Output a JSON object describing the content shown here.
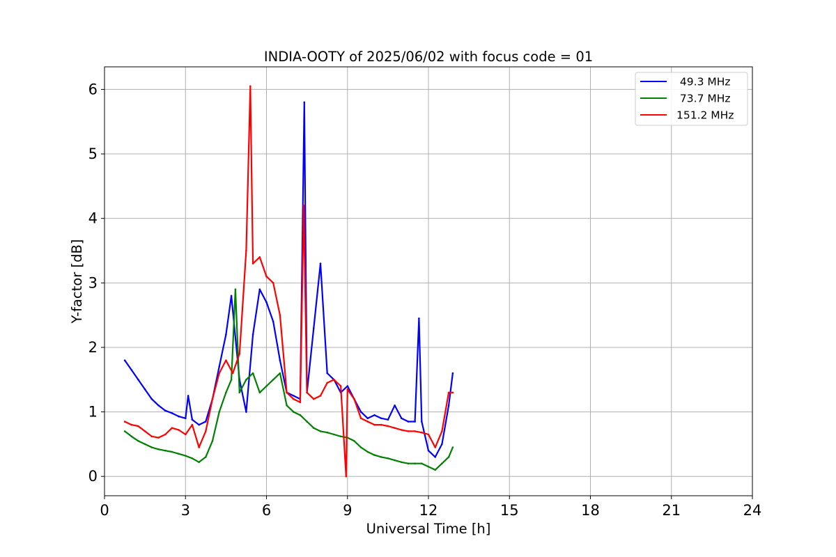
{
  "chart_data": {
    "type": "line",
    "title": "INDIA-OOTY of 2025/06/02 with focus code = 01",
    "xlabel": "Universal Time [h]",
    "ylabel": "Y-factor [dB]",
    "xlim": [
      0,
      24
    ],
    "ylim": [
      -0.3,
      6.35
    ],
    "xticks": [
      0,
      3,
      6,
      9,
      12,
      15,
      18,
      21,
      24
    ],
    "yticks": [
      0,
      1,
      2,
      3,
      4,
      5,
      6
    ],
    "grid": true,
    "legend_position": "upper right",
    "series": [
      {
        "name": " 49.3 MHz",
        "color": "#0000ff",
        "x": [
          0.75,
          1.0,
          1.25,
          1.5,
          1.75,
          2.0,
          2.25,
          2.5,
          2.75,
          3.0,
          3.1,
          3.25,
          3.5,
          3.75,
          4.0,
          4.25,
          4.5,
          4.7,
          5.0,
          5.25,
          5.5,
          5.75,
          6.0,
          6.25,
          6.5,
          6.75,
          7.0,
          7.25,
          7.4,
          7.5,
          7.75,
          8.0,
          8.25,
          8.5,
          8.75,
          9.0,
          9.25,
          9.5,
          9.75,
          10.0,
          10.25,
          10.5,
          10.75,
          11.0,
          11.25,
          11.5,
          11.65,
          11.75,
          12.0,
          12.25,
          12.5,
          12.75,
          12.9
        ],
        "y": [
          1.8,
          1.65,
          1.5,
          1.35,
          1.2,
          1.1,
          1.02,
          0.98,
          0.93,
          0.9,
          1.25,
          0.88,
          0.8,
          0.85,
          1.2,
          1.7,
          2.2,
          2.8,
          1.5,
          1.0,
          2.2,
          2.9,
          2.7,
          2.4,
          1.8,
          1.3,
          1.25,
          1.2,
          5.8,
          1.3,
          2.3,
          3.3,
          1.6,
          1.5,
          1.3,
          1.4,
          1.2,
          1.0,
          0.9,
          0.95,
          0.9,
          0.88,
          1.1,
          0.9,
          0.85,
          0.85,
          2.45,
          0.85,
          0.4,
          0.3,
          0.5,
          1.1,
          1.6
        ]
      },
      {
        "name": " 73.7 MHz",
        "color": "#008000",
        "x": [
          0.75,
          1.0,
          1.25,
          1.5,
          1.75,
          2.0,
          2.25,
          2.5,
          2.75,
          3.0,
          3.25,
          3.5,
          3.75,
          4.0,
          4.25,
          4.5,
          4.7,
          4.85,
          5.0,
          5.25,
          5.5,
          5.75,
          6.0,
          6.25,
          6.5,
          6.75,
          7.0,
          7.25,
          7.5,
          7.75,
          8.0,
          8.25,
          8.5,
          8.75,
          9.0,
          9.25,
          9.5,
          9.75,
          10.0,
          10.25,
          10.5,
          10.75,
          11.0,
          11.25,
          11.5,
          11.75,
          12.0,
          12.25,
          12.5,
          12.75,
          12.9
        ],
        "y": [
          0.7,
          0.62,
          0.55,
          0.5,
          0.45,
          0.42,
          0.4,
          0.38,
          0.35,
          0.32,
          0.28,
          0.22,
          0.3,
          0.55,
          1.0,
          1.3,
          1.5,
          2.9,
          1.3,
          1.5,
          1.6,
          1.3,
          1.4,
          1.5,
          1.6,
          1.1,
          1.0,
          0.95,
          0.85,
          0.75,
          0.7,
          0.68,
          0.65,
          0.62,
          0.6,
          0.55,
          0.45,
          0.38,
          0.33,
          0.3,
          0.28,
          0.25,
          0.22,
          0.2,
          0.2,
          0.2,
          0.15,
          0.1,
          0.2,
          0.3,
          0.45
        ]
      },
      {
        "name": "151.2 MHz",
        "color": "#ff0000",
        "x": [
          0.75,
          1.0,
          1.25,
          1.5,
          1.75,
          2.0,
          2.25,
          2.5,
          2.75,
          3.0,
          3.25,
          3.5,
          3.75,
          4.0,
          4.25,
          4.5,
          4.75,
          5.0,
          5.25,
          5.4,
          5.5,
          5.75,
          6.0,
          6.25,
          6.5,
          6.75,
          7.0,
          7.25,
          7.38,
          7.5,
          7.75,
          8.0,
          8.25,
          8.5,
          8.75,
          8.95,
          9.0,
          9.25,
          9.5,
          9.75,
          10.0,
          10.25,
          10.5,
          10.75,
          11.0,
          11.25,
          11.5,
          11.75,
          12.0,
          12.25,
          12.5,
          12.75,
          12.9
        ],
        "y": [
          0.85,
          0.8,
          0.78,
          0.7,
          0.62,
          0.6,
          0.65,
          0.75,
          0.72,
          0.65,
          0.8,
          0.45,
          0.7,
          1.2,
          1.6,
          1.8,
          1.6,
          1.9,
          3.5,
          6.05,
          3.3,
          3.4,
          3.1,
          3.0,
          2.5,
          1.3,
          1.2,
          1.15,
          4.2,
          1.3,
          1.2,
          1.25,
          1.45,
          1.5,
          1.4,
          0.0,
          1.35,
          1.2,
          0.9,
          0.85,
          0.8,
          0.8,
          0.78,
          0.75,
          0.72,
          0.7,
          0.7,
          0.68,
          0.65,
          0.45,
          0.7,
          1.3,
          1.3
        ]
      }
    ]
  }
}
